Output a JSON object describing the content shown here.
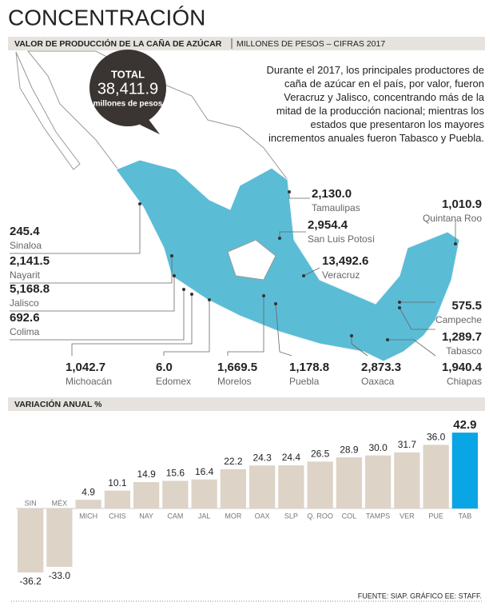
{
  "title": "CONCENTRACIÓN",
  "header": {
    "title": "VALOR DE PRODUCCIÓN  DE LA CAÑA DE AZÚCAR",
    "subtitle": "MILLONES DE PESOS – CIFRAS 2017"
  },
  "total": {
    "label": "TOTAL",
    "value": "38,411.9",
    "unit": "millones de pesos"
  },
  "description": "Durante el 2017, los principales productores de caña de azúcar en el país, por valor, fueron Veracruz y Jalisco, concentrando más de la mitad de la producción nacional; mientras los estados que presentaron los mayores incrementos anuales fueron Tabasco y Puebla.",
  "chart_data": [
    {
      "type": "map",
      "color": "#5bbcd6",
      "categories": [
        "Tamaulipas",
        "San Luis Potosí",
        "Quintana Roo",
        "Veracruz",
        "Sinaloa",
        "Nayarit",
        "Jalisco",
        "Colima",
        "Campeche",
        "Tabasco",
        "Michoacán",
        "Edomex",
        "Morelos",
        "Puebla",
        "Oaxaca",
        "Chiapas"
      ],
      "values": [
        2130.0,
        2954.4,
        1010.9,
        13492.6,
        245.4,
        2141.5,
        5168.8,
        692.6,
        575.5,
        1289.7,
        1042.7,
        6.0,
        1669.5,
        1178.8,
        2873.3,
        1940.4
      ],
      "value_labels": [
        "2,130.0",
        "2,954.4",
        "1,010.9",
        "13,492.6",
        "245.4",
        "2,141.5",
        "5,168.8",
        "692.6",
        "575.5",
        "1,289.7",
        "1,042.7",
        "6.0",
        "1,669.5",
        "1,178.8",
        "2,873.3",
        "1,940.4"
      ]
    },
    {
      "type": "bar",
      "title": "VARIACIÓN ANUAL %",
      "categories": [
        "SIN",
        "MÉX",
        "MICH",
        "CHIS",
        "NAY",
        "CAM",
        "JAL",
        "MOR",
        "OAX",
        "SLP",
        "Q. ROO",
        "COL",
        "TAMPS",
        "VER",
        "PUE",
        "TAB"
      ],
      "values": [
        -36.2,
        -33.0,
        4.9,
        10.1,
        14.9,
        15.6,
        16.4,
        22.2,
        24.3,
        24.4,
        26.5,
        28.9,
        30.0,
        31.7,
        36.0,
        42.9
      ],
      "value_labels": [
        "-36.2",
        "-33.0",
        "4.9",
        "10.1",
        "14.9",
        "15.6",
        "16.4",
        "22.2",
        "24.3",
        "24.4",
        "26.5",
        "28.9",
        "30.0",
        "31.7",
        "36.0",
        "42.9"
      ],
      "colors": [
        "#ddd3c7",
        "#ddd3c7",
        "#ddd3c7",
        "#ddd3c7",
        "#ddd3c7",
        "#ddd3c7",
        "#ddd3c7",
        "#ddd3c7",
        "#ddd3c7",
        "#ddd3c7",
        "#ddd3c7",
        "#ddd3c7",
        "#ddd3c7",
        "#ddd3c7",
        "#ddd3c7",
        "#0aa5e4"
      ],
      "ylim": [
        -52,
        52
      ]
    }
  ],
  "source": "FUENTE: SIAP. GRÁFICO EE: STAFF."
}
